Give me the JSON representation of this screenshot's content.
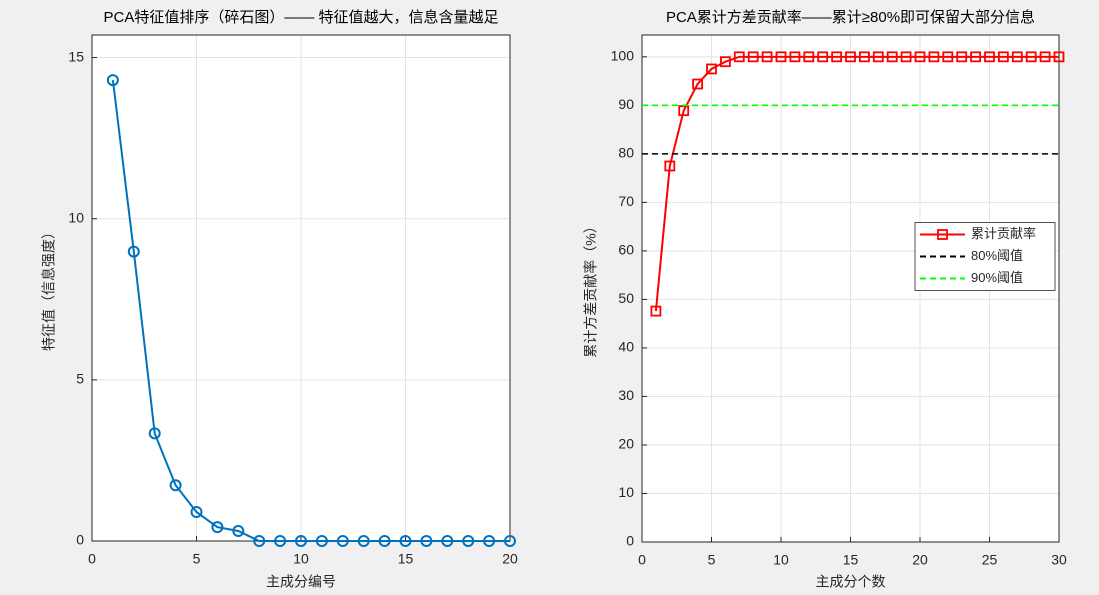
{
  "chart_data": [
    {
      "type": "line",
      "title": "PCA特征值排序（碎石图）—— 特征值越大，信息含量越足",
      "xlabel": "主成分编号",
      "ylabel": "特征值（信息强度）",
      "x": [
        1,
        2,
        3,
        4,
        5,
        6,
        7,
        8,
        9,
        10,
        11,
        12,
        13,
        14,
        15,
        16,
        17,
        18,
        19,
        20
      ],
      "series": [
        {
          "color": "#0072bd",
          "marker": "circle",
          "values": [
            14.3,
            8.98,
            3.34,
            1.73,
            0.9,
            0.43,
            0.31,
            0,
            0,
            0,
            0,
            0,
            0,
            0,
            0,
            0,
            0,
            0,
            0,
            0
          ]
        }
      ],
      "xlim": [
        0,
        20
      ],
      "xticks": [
        0,
        5,
        10,
        15,
        20
      ],
      "ylim": [
        0,
        15.7
      ],
      "yticks": [
        0,
        5,
        10,
        15
      ],
      "grid": true
    },
    {
      "type": "line",
      "title": "PCA累计方差贡献率——累计≥80%即可保留大部分信息",
      "xlabel": "主成分个数",
      "ylabel": "累计方差贡献率（%）",
      "x": [
        1,
        2,
        3,
        4,
        5,
        6,
        7,
        8,
        9,
        10,
        11,
        12,
        13,
        14,
        15,
        16,
        17,
        18,
        19,
        20,
        21,
        22,
        23,
        24,
        25,
        26,
        27,
        28,
        29,
        30
      ],
      "series": [
        {
          "name": "累计贡献率",
          "color": "#ff0000",
          "marker": "square",
          "values": [
            47.6,
            77.5,
            88.9,
            94.4,
            97.5,
            99,
            100,
            100,
            100,
            100,
            100,
            100,
            100,
            100,
            100,
            100,
            100,
            100,
            100,
            100,
            100,
            100,
            100,
            100,
            100,
            100,
            100,
            100,
            100,
            100
          ]
        },
        {
          "name": "80%阈值",
          "color": "#000000",
          "dash": true,
          "x": [
            0,
            30
          ],
          "values": [
            80,
            80
          ]
        },
        {
          "name": "90%阈值",
          "color": "#00ff00",
          "dash": true,
          "x": [
            0,
            30
          ],
          "values": [
            90,
            90
          ]
        }
      ],
      "xlim": [
        0,
        30
      ],
      "xticks": [
        0,
        5,
        10,
        15,
        20,
        25,
        30
      ],
      "ylim": [
        0,
        104.5
      ],
      "yticks": [
        0,
        10,
        20,
        30,
        40,
        50,
        60,
        70,
        80,
        90,
        100
      ],
      "grid": true,
      "legend": "east"
    }
  ]
}
